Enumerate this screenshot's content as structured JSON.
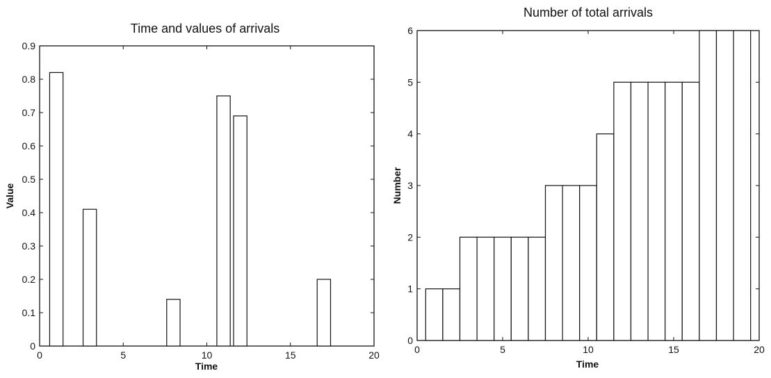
{
  "chart_data": [
    {
      "type": "bar",
      "title": "Time and values of arrivals",
      "xlabel": "Time",
      "ylabel": "Value",
      "xlim": [
        0,
        20
      ],
      "ylim": [
        0,
        0.9
      ],
      "xticks": [
        0,
        5,
        10,
        15,
        20
      ],
      "xtick_labels": [
        "0",
        "5",
        "10",
        "15",
        "20"
      ],
      "yticks": [
        0,
        0.1,
        0.2,
        0.3,
        0.4,
        0.5,
        0.6,
        0.7,
        0.8,
        0.9
      ],
      "ytick_labels": [
        "0",
        "0.1",
        "0.2",
        "0.3",
        "0.4",
        "0.5",
        "0.6",
        "0.7",
        "0.8",
        "0.9"
      ],
      "bar_width": 0.8,
      "x": [
        1,
        3,
        8,
        11,
        12,
        17
      ],
      "values": [
        0.82,
        0.41,
        0.14,
        0.75,
        0.69,
        0.2
      ],
      "grid": false
    },
    {
      "type": "bar",
      "title": "Number of total arrivals",
      "xlabel": "Time",
      "ylabel": "Number",
      "xlim": [
        0,
        20
      ],
      "ylim": [
        0,
        6
      ],
      "xticks": [
        0,
        5,
        10,
        15,
        20
      ],
      "xtick_labels": [
        "0",
        "5",
        "10",
        "15",
        "20"
      ],
      "yticks": [
        0,
        1,
        2,
        3,
        4,
        5,
        6
      ],
      "ytick_labels": [
        "0",
        "1",
        "2",
        "3",
        "4",
        "5",
        "6"
      ],
      "bar_width": 1.0,
      "x": [
        1,
        2,
        3,
        4,
        5,
        6,
        7,
        8,
        9,
        10,
        11,
        12,
        13,
        14,
        15,
        16,
        17,
        18,
        19
      ],
      "values": [
        1,
        1,
        2,
        2,
        2,
        2,
        2,
        3,
        3,
        3,
        4,
        5,
        5,
        5,
        5,
        5,
        6,
        6,
        6
      ],
      "grid": false
    }
  ]
}
